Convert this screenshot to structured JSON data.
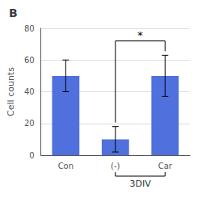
{
  "chart_data": {
    "type": "bar",
    "title": "B",
    "categories": [
      "Con",
      "(-)",
      "Car"
    ],
    "values": [
      50,
      10,
      50
    ],
    "errors": [
      10,
      8,
      13
    ],
    "ylabel": "Cell counts",
    "ylim": [
      0,
      80
    ],
    "yticks": [
      0,
      20,
      40,
      60,
      80
    ],
    "annotations": [
      {
        "text": "*",
        "between": [
          "(-)",
          "Car"
        ],
        "y": 72
      },
      {
        "text": "3DIV",
        "between": [
          "(-)",
          "Car"
        ]
      }
    ]
  }
}
